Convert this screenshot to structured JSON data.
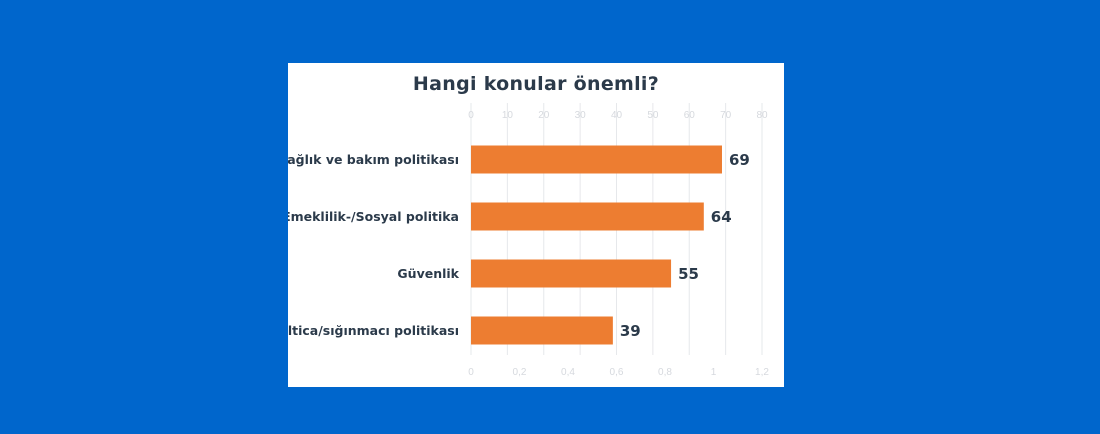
{
  "chart_data": {
    "type": "bar",
    "orientation": "horizontal",
    "title": "Hangi konular önemli?",
    "categories": [
      "Sağlık ve bakım politikası",
      "Emeklilik-/Sosyal politika",
      "Güvenlik",
      "İltica/sığınmacı politikası"
    ],
    "values": [
      69,
      64,
      55,
      39
    ],
    "xlim": [
      0,
      80
    ],
    "top_ticks": [
      "0",
      "10",
      "20",
      "30",
      "40",
      "50",
      "60",
      "70",
      "80"
    ],
    "secondary_xlim": [
      0,
      1.2
    ],
    "bottom_ticks": [
      "0",
      "0,2",
      "0,4",
      "0,6",
      "0,8",
      "1",
      "1,2"
    ],
    "grid": true,
    "legend": "none",
    "colors": {
      "bar": "#ed7d31",
      "background": "#0066cc",
      "panel": "#ffffff",
      "text": "#2b3a4a",
      "grid": "#e6e8eb"
    }
  }
}
